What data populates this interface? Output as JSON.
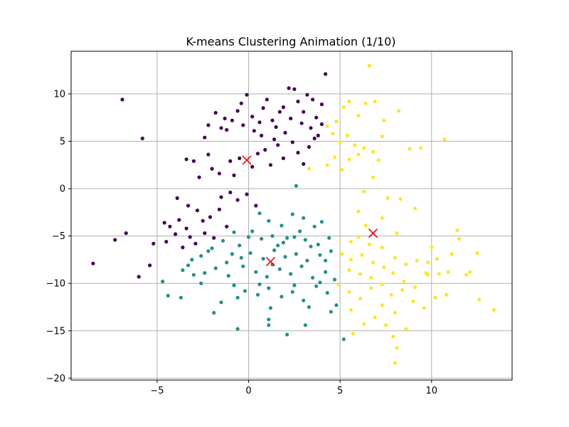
{
  "chart_data": {
    "type": "scatter",
    "title": "K-means Clustering Animation (1/10)",
    "xlabel": "",
    "ylabel": "",
    "xlim": [
      -9.7,
      14.4
    ],
    "ylim": [
      -20.2,
      14.5
    ],
    "x_ticks": [
      -5,
      0,
      5,
      10
    ],
    "y_ticks": [
      -20,
      -15,
      -10,
      -5,
      0,
      5,
      10
    ],
    "grid": true,
    "series": [
      {
        "color": "#440154",
        "points": [
          [
            -6.9,
            9.4
          ],
          [
            -5.8,
            5.3
          ],
          [
            -3.4,
            3.1
          ],
          [
            -3.0,
            2.9
          ],
          [
            -2.7,
            1.2
          ],
          [
            -2.2,
            3.6
          ],
          [
            -2.4,
            5.4
          ],
          [
            -2.2,
            6.7
          ],
          [
            -1.8,
            8.0
          ],
          [
            -1.5,
            6.4
          ],
          [
            -1.3,
            7.4
          ],
          [
            -1.2,
            6.2
          ],
          [
            -0.9,
            7.2
          ],
          [
            -0.6,
            8.2
          ],
          [
            -0.4,
            9.0
          ],
          [
            -0.3,
            6.7
          ],
          [
            -0.1,
            9.9
          ],
          [
            0.2,
            7.6
          ],
          [
            0.6,
            7.0
          ],
          [
            0.8,
            8.5
          ],
          [
            1.0,
            9.4
          ],
          [
            1.3,
            7.2
          ],
          [
            1.5,
            6.5
          ],
          [
            1.7,
            8.1
          ],
          [
            1.9,
            8.6
          ],
          [
            2.2,
            10.6
          ],
          [
            2.5,
            10.5
          ],
          [
            2.7,
            9.2
          ],
          [
            3.0,
            8.1
          ],
          [
            3.2,
            9.9
          ],
          [
            3.5,
            9.4
          ],
          [
            3.7,
            7.5
          ],
          [
            4.0,
            8.9
          ],
          [
            4.2,
            12.1
          ],
          [
            -2.0,
            2.1
          ],
          [
            -1.6,
            1.6
          ],
          [
            -1.0,
            2.9
          ],
          [
            -0.8,
            1.4
          ],
          [
            -0.5,
            3.2
          ],
          [
            0.2,
            2.3
          ],
          [
            0.5,
            3.7
          ],
          [
            0.9,
            4.1
          ],
          [
            1.2,
            2.5
          ],
          [
            1.6,
            4.6
          ],
          [
            1.9,
            3.2
          ],
          [
            2.4,
            4.9
          ],
          [
            2.7,
            3.8
          ],
          [
            3.0,
            2.6
          ],
          [
            3.3,
            4.4
          ],
          [
            3.6,
            5.3
          ],
          [
            -1.5,
            -0.9
          ],
          [
            -1.0,
            -0.4
          ],
          [
            -0.6,
            -1.2
          ],
          [
            -0.1,
            -0.6
          ],
          [
            0.4,
            -1.8
          ],
          [
            -3.3,
            -1.8
          ],
          [
            -2.8,
            -2.3
          ],
          [
            -2.5,
            -3.4
          ],
          [
            -2.1,
            -3.0
          ],
          [
            -1.6,
            -2.2
          ],
          [
            -1.2,
            -4.0
          ],
          [
            -3.8,
            -3.3
          ],
          [
            -4.3,
            -4.0
          ],
          [
            -4.6,
            -3.6
          ],
          [
            -5.2,
            -5.8
          ],
          [
            -5.4,
            -8.1
          ],
          [
            -6.0,
            -9.3
          ],
          [
            -6.7,
            -4.7
          ],
          [
            -7.3,
            -5.4
          ],
          [
            -8.5,
            -7.9
          ],
          [
            -3.9,
            -1.0
          ],
          [
            -3.4,
            -4.2
          ],
          [
            -4.0,
            -4.8
          ],
          [
            -3.2,
            -5.1
          ],
          [
            -2.4,
            -4.7
          ],
          [
            -2.9,
            -5.8
          ],
          [
            -1.9,
            -5.2
          ],
          [
            -4.5,
            -5.6
          ],
          [
            -3.6,
            -6.2
          ],
          [
            4.0,
            6.8
          ],
          [
            3.8,
            5.6
          ],
          [
            3.4,
            6.4
          ],
          [
            2.9,
            6.9
          ],
          [
            2.3,
            7.4
          ],
          [
            2.0,
            5.9
          ],
          [
            1.4,
            5.2
          ],
          [
            0.7,
            5.6
          ],
          [
            0.3,
            6.1
          ]
        ]
      },
      {
        "color": "#21918c",
        "points": [
          [
            2.6,
            0.3
          ],
          [
            0.6,
            -2.6
          ],
          [
            1.1,
            -3.4
          ],
          [
            1.8,
            -3.9
          ],
          [
            2.4,
            -2.7
          ],
          [
            3.0,
            -3.1
          ],
          [
            3.6,
            -4.0
          ],
          [
            4.0,
            -3.5
          ],
          [
            0.2,
            -4.5
          ],
          [
            0.7,
            -5.3
          ],
          [
            1.3,
            -5.0
          ],
          [
            1.9,
            -5.7
          ],
          [
            2.5,
            -5.1
          ],
          [
            3.1,
            -5.4
          ],
          [
            3.8,
            -5.9
          ],
          [
            4.4,
            -5.2
          ],
          [
            -0.8,
            -4.6
          ],
          [
            -1.4,
            -5.5
          ],
          [
            -2.0,
            -6.3
          ],
          [
            -2.6,
            -7.1
          ],
          [
            -3.1,
            -7.5
          ],
          [
            -0.5,
            -6.0
          ],
          [
            0.1,
            -6.8
          ],
          [
            0.8,
            -7.4
          ],
          [
            1.4,
            -6.5
          ],
          [
            2.0,
            -7.2
          ],
          [
            2.6,
            -6.9
          ],
          [
            3.2,
            -7.6
          ],
          [
            3.9,
            -7.0
          ],
          [
            4.5,
            -6.6
          ],
          [
            -1.2,
            -7.8
          ],
          [
            -1.8,
            -8.4
          ],
          [
            -2.4,
            -8.9
          ],
          [
            -3.0,
            -9.1
          ],
          [
            -3.6,
            -8.6
          ],
          [
            -0.3,
            -8.2
          ],
          [
            0.4,
            -8.8
          ],
          [
            1.0,
            -9.3
          ],
          [
            1.7,
            -8.5
          ],
          [
            2.3,
            -9.0
          ],
          [
            2.9,
            -8.2
          ],
          [
            3.5,
            -9.4
          ],
          [
            4.2,
            -8.8
          ],
          [
            4.7,
            -9.6
          ],
          [
            -0.8,
            -10.2
          ],
          [
            -0.2,
            -10.8
          ],
          [
            0.5,
            -11.2
          ],
          [
            1.1,
            -10.5
          ],
          [
            1.8,
            -11.4
          ],
          [
            2.4,
            -10.9
          ],
          [
            3.0,
            -11.8
          ],
          [
            3.7,
            -10.3
          ],
          [
            4.3,
            -11.0
          ],
          [
            4.8,
            -12.3
          ],
          [
            -1.5,
            -12.0
          ],
          [
            -0.6,
            -11.5
          ],
          [
            1.2,
            -12.6
          ],
          [
            3.3,
            -12.5
          ],
          [
            4.5,
            -13.0
          ],
          [
            -4.7,
            -9.8
          ],
          [
            -4.4,
            -11.3
          ],
          [
            -3.7,
            -11.5
          ],
          [
            -2.6,
            -10.0
          ],
          [
            -1.9,
            -13.1
          ],
          [
            -0.6,
            -14.8
          ],
          [
            1.1,
            -13.8
          ],
          [
            1.1,
            -14.4
          ],
          [
            2.1,
            -15.4
          ],
          [
            3.1,
            -14.4
          ],
          [
            5.2,
            -15.9
          ],
          [
            -0.9,
            -6.9
          ],
          [
            0.0,
            -5.1
          ],
          [
            1.6,
            -6.0
          ],
          [
            2.8,
            -4.5
          ],
          [
            4.2,
            -7.6
          ],
          [
            -1.1,
            -9.2
          ],
          [
            0.6,
            -10.1
          ],
          [
            2.5,
            -10.2
          ],
          [
            3.9,
            -9.9
          ],
          [
            -2.2,
            -6.6
          ],
          [
            -3.3,
            -8.1
          ],
          [
            -0.4,
            -7.3
          ],
          [
            1.3,
            -8.0
          ],
          [
            2.1,
            -5.2
          ],
          [
            3.4,
            -6.1
          ]
        ]
      },
      {
        "color": "#fde725",
        "points": [
          [
            6.6,
            13.0
          ],
          [
            4.8,
            7.1
          ],
          [
            5.2,
            8.6
          ],
          [
            5.5,
            9.2
          ],
          [
            6.0,
            7.7
          ],
          [
            6.4,
            9.0
          ],
          [
            6.9,
            9.2
          ],
          [
            7.4,
            7.2
          ],
          [
            4.3,
            6.6
          ],
          [
            4.6,
            5.8
          ],
          [
            5.0,
            4.9
          ],
          [
            5.4,
            5.6
          ],
          [
            5.8,
            4.6
          ],
          [
            6.3,
            4.3
          ],
          [
            6.8,
            3.9
          ],
          [
            7.3,
            5.5
          ],
          [
            4.3,
            2.5
          ],
          [
            4.7,
            3.3
          ],
          [
            5.1,
            2.0
          ],
          [
            5.5,
            3.1
          ],
          [
            6.0,
            3.6
          ],
          [
            7.1,
            3.0
          ],
          [
            8.2,
            8.2
          ],
          [
            8.8,
            4.2
          ],
          [
            9.4,
            4.3
          ],
          [
            10.7,
            5.2
          ],
          [
            3.3,
            2.1
          ],
          [
            6.8,
            1.2
          ],
          [
            6.3,
            -0.3
          ],
          [
            7.6,
            -1.0
          ],
          [
            8.3,
            -1.1
          ],
          [
            9.1,
            -2.1
          ],
          [
            6.0,
            -2.4
          ],
          [
            6.4,
            -3.9
          ],
          [
            7.3,
            -3.1
          ],
          [
            8.1,
            -4.7
          ],
          [
            5.6,
            -5.6
          ],
          [
            6.0,
            -5.1
          ],
          [
            6.6,
            -5.9
          ],
          [
            7.3,
            -6.2
          ],
          [
            5.1,
            -6.9
          ],
          [
            5.6,
            -7.5
          ],
          [
            6.2,
            -7.0
          ],
          [
            6.8,
            -7.8
          ],
          [
            7.4,
            -8.3
          ],
          [
            8.0,
            -7.3
          ],
          [
            8.6,
            -8.0
          ],
          [
            9.2,
            -7.6
          ],
          [
            9.7,
            -8.9
          ],
          [
            10.3,
            -7.4
          ],
          [
            5.5,
            -8.6
          ],
          [
            6.1,
            -9.0
          ],
          [
            6.7,
            -9.4
          ],
          [
            7.3,
            -10.1
          ],
          [
            7.9,
            -8.9
          ],
          [
            8.5,
            -9.8
          ],
          [
            9.1,
            -10.4
          ],
          [
            9.8,
            -9.1
          ],
          [
            10.4,
            -9.0
          ],
          [
            10.9,
            -8.8
          ],
          [
            4.9,
            -10.1
          ],
          [
            5.5,
            -10.9
          ],
          [
            6.1,
            -11.6
          ],
          [
            6.7,
            -10.5
          ],
          [
            7.3,
            -12.3
          ],
          [
            7.8,
            -11.2
          ],
          [
            8.4,
            -10.7
          ],
          [
            9.0,
            -11.9
          ],
          [
            9.6,
            -12.6
          ],
          [
            10.2,
            -11.5
          ],
          [
            5.6,
            -12.8
          ],
          [
            6.3,
            -14.3
          ],
          [
            6.9,
            -13.6
          ],
          [
            7.5,
            -14.4
          ],
          [
            8.0,
            -13.1
          ],
          [
            8.6,
            -14.8
          ],
          [
            5.7,
            -15.3
          ],
          [
            7.9,
            -15.6
          ],
          [
            8.1,
            -16.8
          ],
          [
            8.0,
            -18.4
          ],
          [
            10.8,
            -11.2
          ],
          [
            11.4,
            -4.4
          ],
          [
            11.5,
            -5.3
          ],
          [
            11.9,
            -9.1
          ],
          [
            12.5,
            -6.8
          ],
          [
            12.6,
            -11.7
          ],
          [
            13.4,
            -12.8
          ],
          [
            11.1,
            -6.9
          ],
          [
            10.0,
            -6.2
          ],
          [
            9.8,
            -7.8
          ],
          [
            12.1,
            -8.8
          ]
        ]
      }
    ],
    "centroids": {
      "color": "#ff0000",
      "marker": "x",
      "points": [
        [
          -0.1,
          3.0
        ],
        [
          1.2,
          -7.7
        ],
        [
          6.8,
          -4.7
        ]
      ]
    }
  }
}
